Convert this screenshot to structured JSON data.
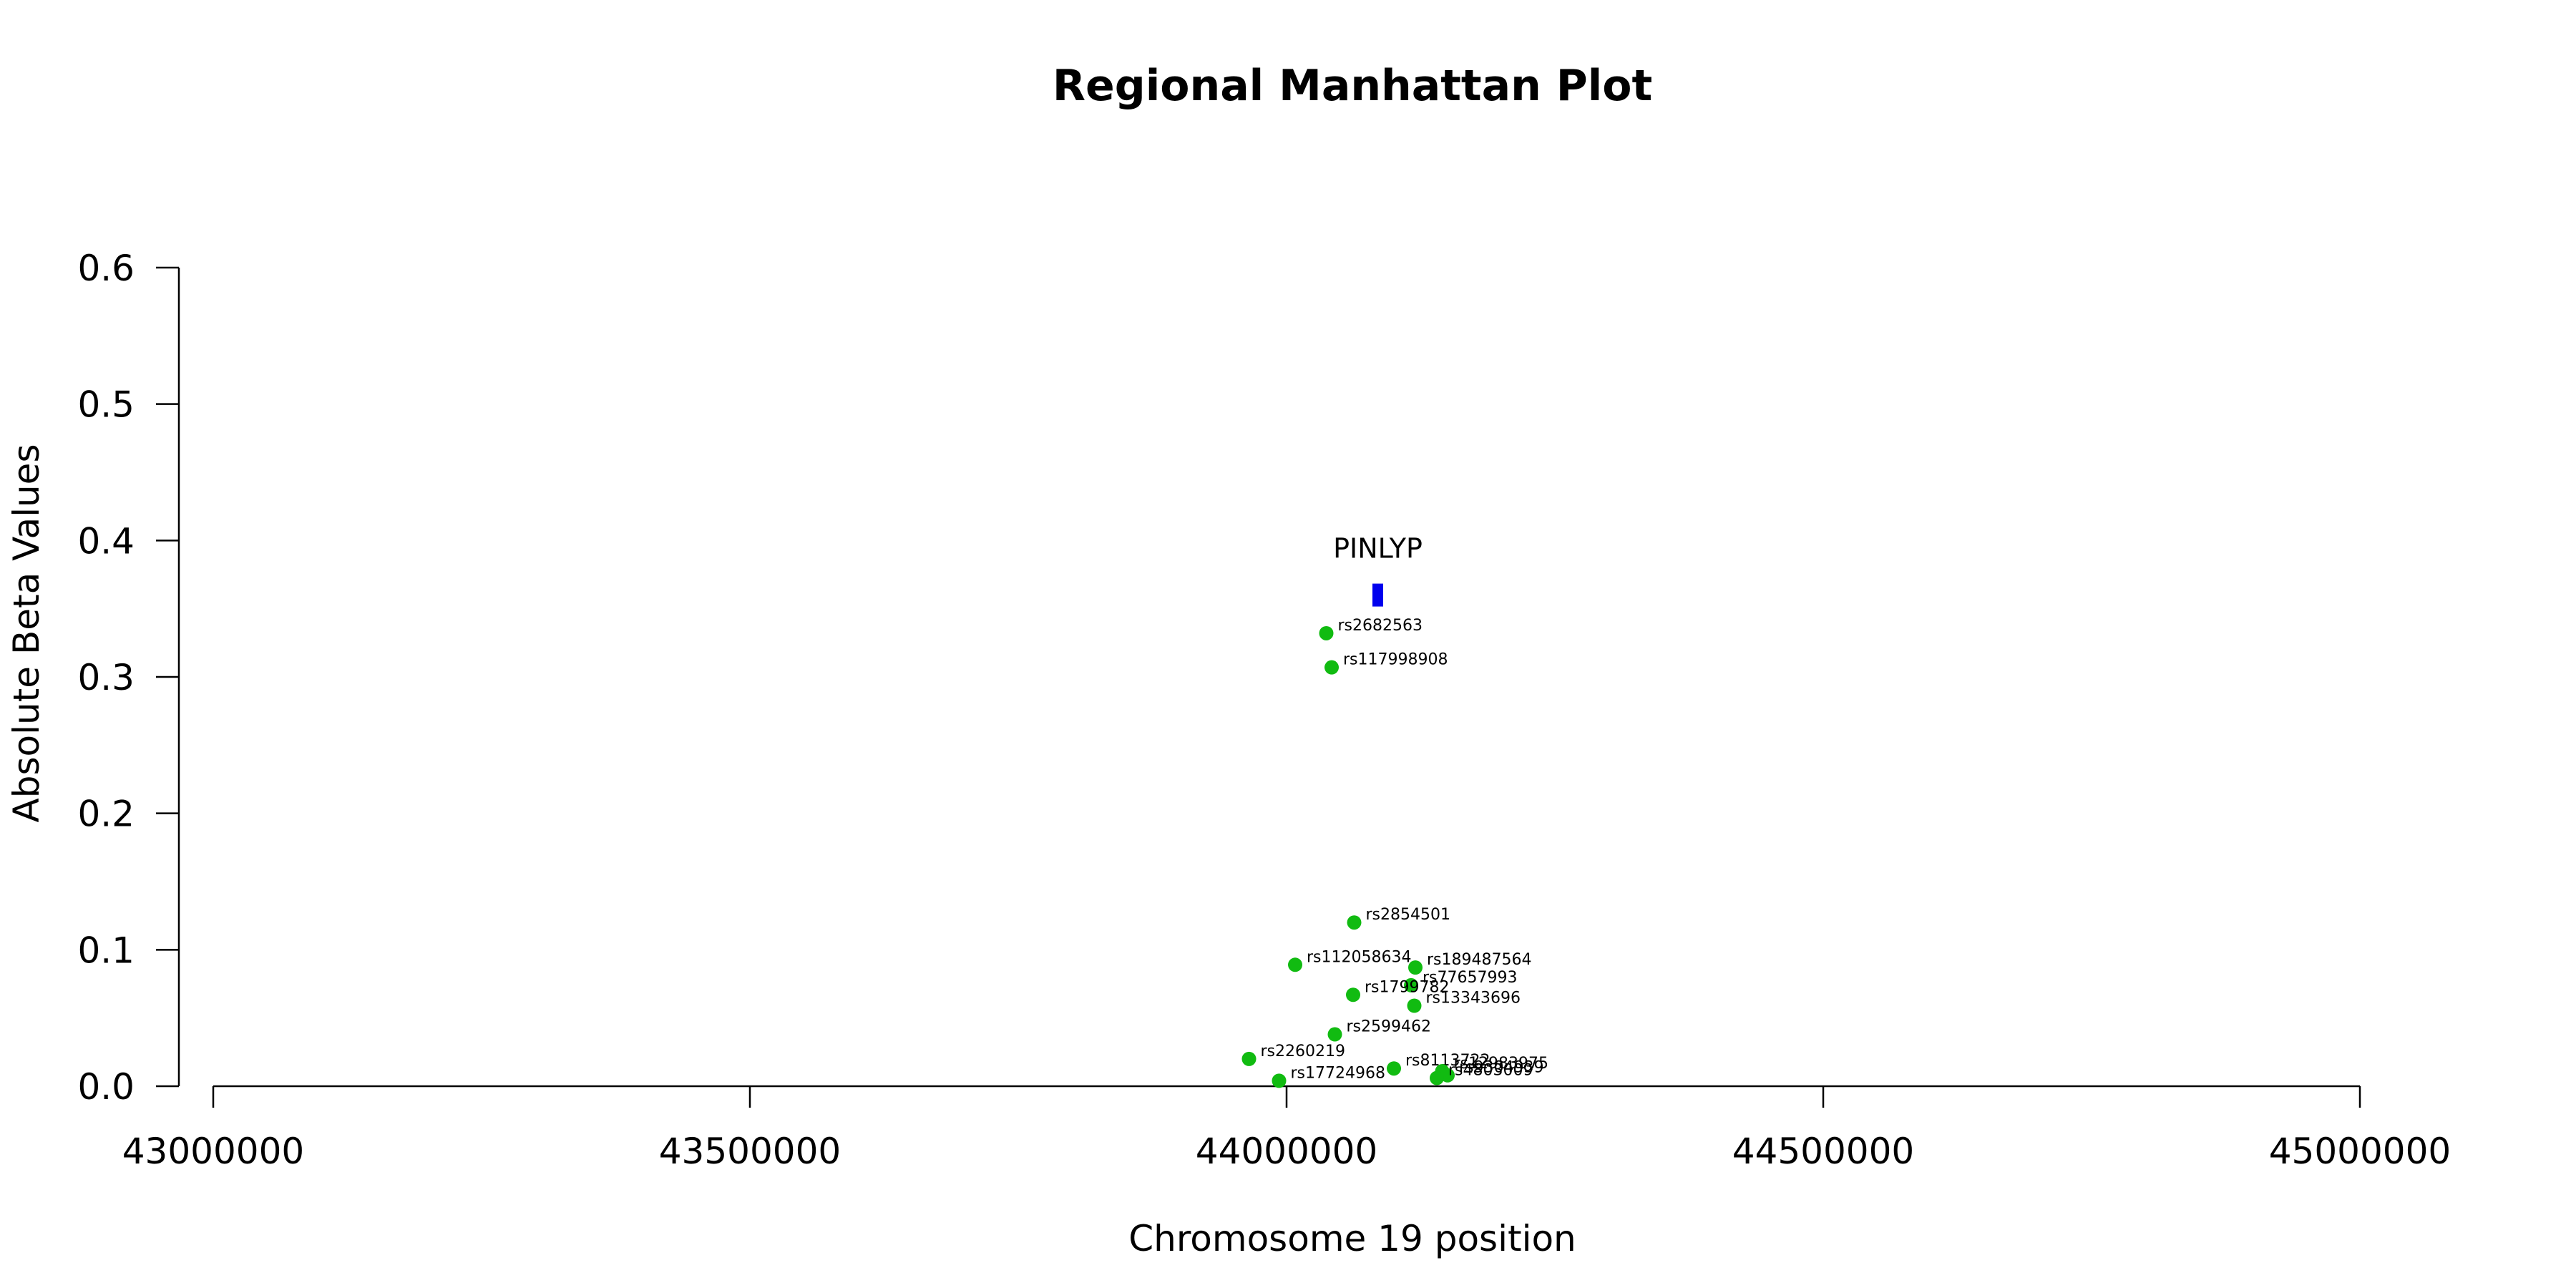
{
  "chart_data": {
    "type": "scatter",
    "title": "Regional Manhattan Plot",
    "xlabel": "Chromosome 19 position",
    "ylabel": "Absolute Beta Values",
    "xlim": [
      43000000,
      45000000
    ],
    "ylim": [
      0,
      0.6
    ],
    "x_ticks": [
      43000000,
      43500000,
      44000000,
      44500000,
      45000000
    ],
    "x_tick_labels": [
      "43000000",
      "43500000",
      "44000000",
      "44500000",
      "45000000"
    ],
    "y_ticks": [
      0,
      0.1,
      0.2,
      0.3,
      0.4,
      0.5,
      0.6
    ],
    "y_tick_labels": [
      "0.0",
      "0.1",
      "0.2",
      "0.3",
      "0.4",
      "0.5",
      "0.6"
    ],
    "grid": false,
    "point_color": "#11bb11",
    "gene_color": "#0000ee",
    "gene": {
      "name": "PINLYP",
      "start": 44080000,
      "end": 44090000,
      "y": 0.36
    },
    "points": [
      {
        "label": "rs2682563",
        "x": 44037000,
        "y": 0.332
      },
      {
        "label": "rs117998908",
        "x": 44042000,
        "y": 0.307
      },
      {
        "label": "rs2854501",
        "x": 44063000,
        "y": 0.12
      },
      {
        "label": "rs112058634",
        "x": 44008000,
        "y": 0.089
      },
      {
        "label": "rs189487564",
        "x": 44120000,
        "y": 0.087
      },
      {
        "label": "rs77657993",
        "x": 44116000,
        "y": 0.074
      },
      {
        "label": "rs1799782",
        "x": 44062000,
        "y": 0.067
      },
      {
        "label": "rs13343696",
        "x": 44119000,
        "y": 0.059
      },
      {
        "label": "rs2599462",
        "x": 44045000,
        "y": 0.038
      },
      {
        "label": "rs2260219",
        "x": 43965000,
        "y": 0.02
      },
      {
        "label": "rs8113722",
        "x": 44100000,
        "y": 0.013
      },
      {
        "label": "rs12983975",
        "x": 44145000,
        "y": 0.011
      },
      {
        "label": "rs9304939",
        "x": 44150000,
        "y": 0.008
      },
      {
        "label": "rs4803009",
        "x": 44140000,
        "y": 0.006
      },
      {
        "label": "rs17724968",
        "x": 43993000,
        "y": 0.004
      }
    ]
  }
}
